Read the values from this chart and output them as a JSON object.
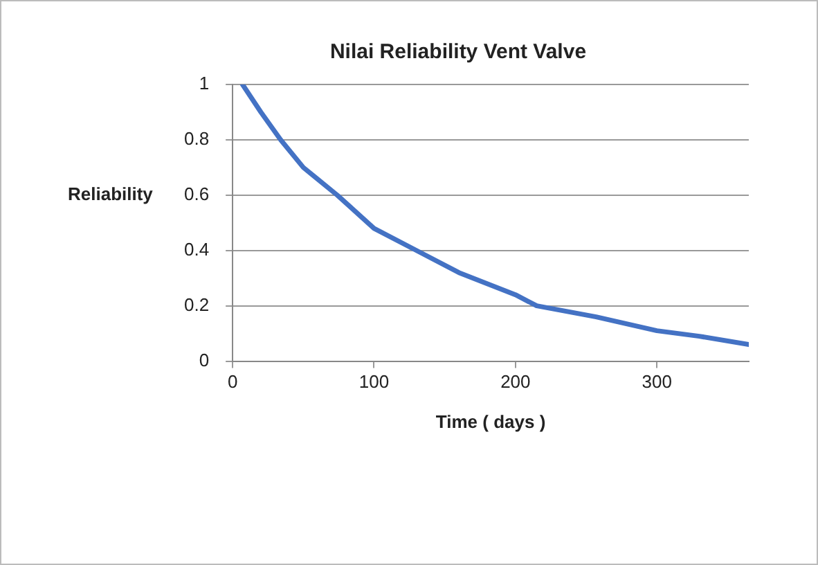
{
  "chart_data": {
    "type": "line",
    "title": "Nilai Reliability Vent Valve",
    "xlabel": "Time ( days )",
    "ylabel": "Reliability",
    "series": [
      {
        "color": "#4472c4",
        "x": [
          7,
          20,
          34,
          50,
          74,
          100,
          130,
          160,
          200,
          215,
          257,
          300,
          330,
          365
        ],
        "values": [
          1,
          0.9,
          0.8,
          0.7,
          0.6,
          0.48,
          0.4,
          0.32,
          0.24,
          0.2,
          0.16,
          0.11,
          0.09,
          0.06
        ]
      }
    ],
    "xlim": [
      0,
      365
    ],
    "xticks": [
      0,
      100,
      200,
      300
    ],
    "ylim": [
      0,
      1
    ],
    "yticks": [
      0,
      0.2,
      0.4,
      0.6,
      0.8,
      1
    ],
    "grid": "y",
    "legend": false,
    "marker": "none",
    "line_style": "solid"
  }
}
